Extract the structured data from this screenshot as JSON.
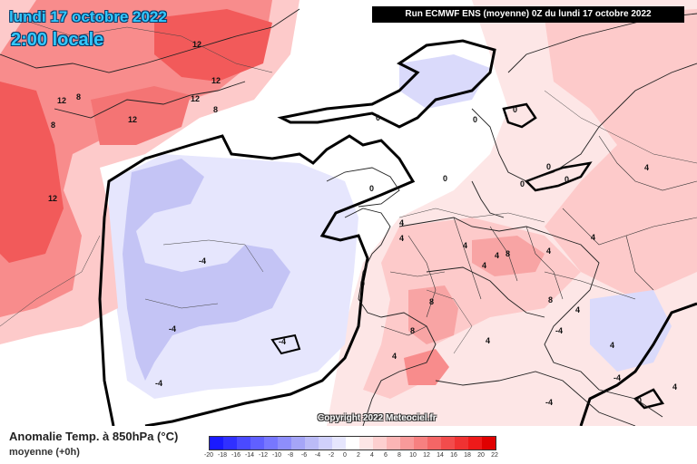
{
  "header": {
    "date": "lundi 17 octobre 2022",
    "local_time": "2:00 locale",
    "run_info": "Run ECMWF ENS (moyenne) 0Z du lundi 17 octobre 2022"
  },
  "footer": {
    "legend_title": "Anomalie Temp. à 850hPa (°C)",
    "legend_subtitle": "moyenne   (+0h)",
    "copyright": "Copyright 2022 Meteociel.fr"
  },
  "colors": {
    "strong_red": "#f25a5a",
    "medium_red": "#f88c8c",
    "light_red": "#fdcaca",
    "pale_red": "#fde6e6",
    "light_blue": "#d8d8fb",
    "blue": "#b4b4f3"
  },
  "scale": {
    "ticks": [
      "-20",
      "-18",
      "-16",
      "-14",
      "-12",
      "-10",
      "-8",
      "-6",
      "-4",
      "-2",
      "0",
      "2",
      "4",
      "6",
      "8",
      "10",
      "12",
      "14",
      "16",
      "18",
      "20",
      "22"
    ],
    "colors": [
      "#1a1aff",
      "#3030ff",
      "#4a4aff",
      "#6060ff",
      "#7777ff",
      "#8e8efb",
      "#a5a5f7",
      "#bbbbf7",
      "#d0d0fb",
      "#e6e6fd",
      "#ffffff",
      "#fde6e6",
      "#fdcfcf",
      "#fbb5b5",
      "#f99a9a",
      "#f78080",
      "#f46666",
      "#f24c4c",
      "#f03232",
      "#ee1a1a",
      "#e00000"
    ]
  },
  "map": {
    "contour_labels": [
      "12",
      "12",
      "12",
      "8",
      "12",
      "8",
      "12",
      "8",
      "12",
      "0",
      "0",
      "0",
      "0",
      "0",
      "0",
      "0",
      "0",
      "4",
      "4",
      "4",
      "4",
      "4",
      "4",
      "4",
      "4",
      "8",
      "8",
      "8",
      "8",
      "0",
      "4",
      "4",
      "4",
      "4",
      "4",
      "-4",
      "-4",
      "-4",
      "-4",
      "-4",
      "-4",
      "-4",
      "0"
    ]
  }
}
